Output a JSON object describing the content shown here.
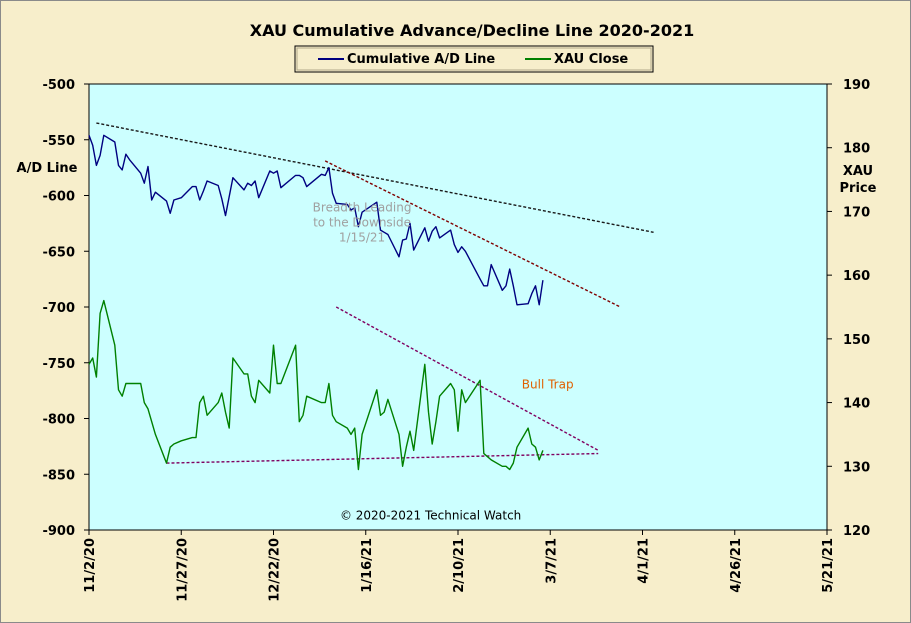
{
  "chart_data": {
    "type": "line",
    "title": "XAU Cumulative  Advance/Decline  Line  2020-2021",
    "legend": {
      "placement": "top-center",
      "entries": [
        "Cumulative A/D Line",
        "XAU Close"
      ]
    },
    "left_axis": {
      "label_lines": [
        "A/D Line"
      ],
      "range": [
        -900,
        -500
      ],
      "ticks": [
        "-500",
        "-550",
        "-600",
        "-650",
        "-700",
        "-750",
        "-800",
        "-850",
        "-900"
      ]
    },
    "right_axis": {
      "label_lines": [
        "XAU",
        "Price"
      ],
      "range": [
        120,
        190
      ],
      "ticks": [
        "190",
        "180",
        "170",
        "160",
        "150",
        "140",
        "130",
        "120"
      ]
    },
    "x_axis": {
      "range": [
        "2020-11-02",
        "2021-05-21"
      ],
      "ticks": [
        "11/2/20",
        "11/27/20",
        "12/22/20",
        "1/16/21",
        "2/10/21",
        "3/7/21",
        "4/1/21",
        "4/26/21",
        "5/21/21"
      ]
    },
    "grid": false,
    "colors": {
      "ad_line": "#000080",
      "xau_close": "#008000",
      "plot_bg": "#ccffff",
      "page_bg": "#f7eecb",
      "trend_dark": "#1a1a1a",
      "trend_red": "#800000",
      "trend_purple": "#800060",
      "bull_trap": "#e06000"
    },
    "series": [
      {
        "name": "Cumulative A/D Line",
        "axis": "left",
        "x": [
          "2020-11-02",
          "2020-11-03",
          "2020-11-04",
          "2020-11-05",
          "2020-11-06",
          "2020-11-09",
          "2020-11-10",
          "2020-11-11",
          "2020-11-12",
          "2020-11-13",
          "2020-11-16",
          "2020-11-17",
          "2020-11-18",
          "2020-11-19",
          "2020-11-20",
          "2020-11-23",
          "2020-11-24",
          "2020-11-25",
          "2020-11-27",
          "2020-11-30",
          "2020-12-01",
          "2020-12-02",
          "2020-12-03",
          "2020-12-04",
          "2020-12-07",
          "2020-12-08",
          "2020-12-09",
          "2020-12-10",
          "2020-12-11",
          "2020-12-14",
          "2020-12-15",
          "2020-12-16",
          "2020-12-17",
          "2020-12-18",
          "2020-12-21",
          "2020-12-22",
          "2020-12-23",
          "2020-12-24",
          "2020-12-28",
          "2020-12-29",
          "2020-12-30",
          "2020-12-31",
          "2021-01-04",
          "2021-01-05",
          "2021-01-06",
          "2021-01-07",
          "2021-01-08",
          "2021-01-11",
          "2021-01-12",
          "2021-01-13",
          "2021-01-14",
          "2021-01-15",
          "2021-01-19",
          "2021-01-20",
          "2021-01-21",
          "2021-01-22",
          "2021-01-25",
          "2021-01-26",
          "2021-01-27",
          "2021-01-28",
          "2021-01-29",
          "2021-02-01",
          "2021-02-02",
          "2021-02-03",
          "2021-02-04",
          "2021-02-05",
          "2021-02-08",
          "2021-02-09",
          "2021-02-10",
          "2021-02-11",
          "2021-02-12",
          "2021-02-16",
          "2021-02-17",
          "2021-02-18",
          "2021-02-19",
          "2021-02-22",
          "2021-02-23",
          "2021-02-24",
          "2021-02-25",
          "2021-02-26",
          "2021-03-01",
          "2021-03-02",
          "2021-03-03",
          "2021-03-04",
          "2021-03-05"
        ],
        "values": [
          -546,
          -555,
          -573,
          -564,
          -546,
          -552,
          -573,
          -577,
          -563,
          -568,
          -580,
          -589,
          -574,
          -604,
          -597,
          -605,
          -616,
          -604,
          -602,
          -592,
          -592,
          -604,
          -596,
          -587,
          -591,
          -603,
          -618,
          -601,
          -584,
          -595,
          -589,
          -591,
          -587,
          -602,
          -578,
          -580,
          -578,
          -593,
          -582,
          -582,
          -584,
          -592,
          -581,
          -582,
          -575,
          -598,
          -607,
          -608,
          -613,
          -611,
          -628,
          -615,
          -606,
          -631,
          -633,
          -635,
          -655,
          -640,
          -639,
          -625,
          -649,
          -629,
          -641,
          -632,
          -628,
          -638,
          -631,
          -644,
          -651,
          -646,
          -650,
          -675,
          -681,
          -681,
          -662,
          -685,
          -681,
          -666,
          -681,
          -698,
          -697,
          -688,
          -681,
          -698,
          -676
        ]
      },
      {
        "name": "XAU Close",
        "axis": "right",
        "x": [
          "2020-11-02",
          "2020-11-03",
          "2020-11-04",
          "2020-11-05",
          "2020-11-06",
          "2020-11-09",
          "2020-11-10",
          "2020-11-11",
          "2020-11-12",
          "2020-11-13",
          "2020-11-16",
          "2020-11-17",
          "2020-11-18",
          "2020-11-19",
          "2020-11-20",
          "2020-11-23",
          "2020-11-24",
          "2020-11-25",
          "2020-11-27",
          "2020-11-30",
          "2020-12-01",
          "2020-12-02",
          "2020-12-03",
          "2020-12-04",
          "2020-12-07",
          "2020-12-08",
          "2020-12-09",
          "2020-12-10",
          "2020-12-11",
          "2020-12-14",
          "2020-12-15",
          "2020-12-16",
          "2020-12-17",
          "2020-12-18",
          "2020-12-21",
          "2020-12-22",
          "2020-12-23",
          "2020-12-24",
          "2020-12-28",
          "2020-12-29",
          "2020-12-30",
          "2020-12-31",
          "2021-01-04",
          "2021-01-05",
          "2021-01-06",
          "2021-01-07",
          "2021-01-08",
          "2021-01-11",
          "2021-01-12",
          "2021-01-13",
          "2021-01-14",
          "2021-01-15",
          "2021-01-19",
          "2021-01-20",
          "2021-01-21",
          "2021-01-22",
          "2021-01-25",
          "2021-01-26",
          "2021-01-27",
          "2021-01-28",
          "2021-01-29",
          "2021-02-01",
          "2021-02-02",
          "2021-02-03",
          "2021-02-04",
          "2021-02-05",
          "2021-02-08",
          "2021-02-09",
          "2021-02-10",
          "2021-02-11",
          "2021-02-12",
          "2021-02-16",
          "2021-02-17",
          "2021-02-18",
          "2021-02-19",
          "2021-02-22",
          "2021-02-23",
          "2021-02-24",
          "2021-02-25",
          "2021-02-26",
          "2021-03-01",
          "2021-03-02",
          "2021-03-03",
          "2021-03-04",
          "2021-03-05"
        ],
        "values": [
          146,
          147,
          144,
          154,
          156,
          149,
          142,
          141,
          143,
          143,
          143,
          140,
          139,
          137,
          135,
          130.5,
          133,
          133.5,
          134,
          134.5,
          134.5,
          140,
          141,
          138,
          140,
          141.5,
          138.5,
          136,
          147,
          144.5,
          144.5,
          141,
          140,
          143.5,
          141.5,
          149,
          143,
          143,
          149,
          137,
          138,
          141,
          140,
          140,
          143,
          138,
          137,
          136,
          135,
          136,
          129.5,
          135,
          142,
          138,
          138.5,
          140.5,
          135,
          130,
          133,
          135.5,
          132.5,
          146,
          138.5,
          133.5,
          137,
          141,
          143,
          142,
          135.5,
          142,
          140,
          143.5,
          132,
          131.5,
          131,
          130,
          130,
          129.5,
          130.5,
          133,
          136,
          133.5,
          133,
          131,
          132.5
        ]
      }
    ],
    "trendlines": [
      {
        "name": "A/D long-term resistance",
        "color": "dark",
        "axis": "left",
        "from": [
          "2020-11-04",
          -535
        ],
        "to": [
          "2021-04-04",
          -633
        ]
      },
      {
        "name": "A/D short-term resistance",
        "color": "red",
        "axis": "left",
        "from": [
          "2021-01-05",
          -569
        ],
        "to": [
          "2021-03-26",
          -700
        ]
      },
      {
        "name": "XAU falling resistance",
        "color": "purple",
        "axis": "right",
        "from": [
          "2021-01-08",
          155
        ],
        "to": [
          "2021-03-20",
          132.5
        ]
      },
      {
        "name": "XAU support",
        "color": "purple",
        "axis": "right",
        "from": [
          "2020-11-23",
          130.5
        ],
        "to": [
          "2021-03-20",
          132
        ]
      }
    ],
    "annotations": [
      {
        "text_lines": [
          "Breadth Leading",
          "to the Downside",
          "1/15/21"
        ],
        "x": "2021-01-15",
        "axis": "left",
        "y": -610
      },
      {
        "text": "Bull Trap",
        "x": "2021-03-02",
        "axis": "right",
        "y": 143
      },
      {
        "text": "© 2020-2021  Technical  Watch",
        "x": "2021-02-08",
        "axis": "left",
        "y": -886
      }
    ]
  }
}
